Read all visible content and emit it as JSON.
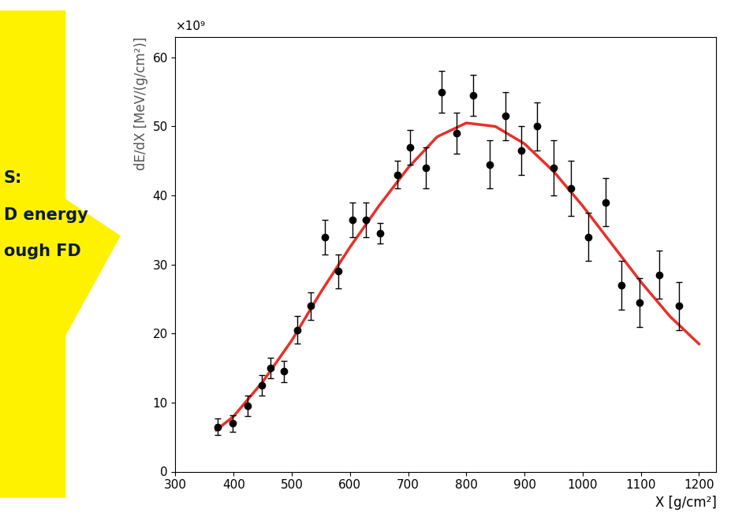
{
  "chart_data": {
    "type": "scatter",
    "x_label": "X [g/cm²]",
    "y_label": "dE/dX [MeV/(g/cm²)]",
    "annotations": [
      "×10⁹",
      "S:",
      "D energy",
      "ough FD"
    ],
    "xlim": [
      300,
      1230
    ],
    "xticks": [
      300,
      400,
      500,
      600,
      700,
      800,
      900,
      1000,
      1100,
      1200
    ],
    "ylim": [
      0,
      63
    ],
    "yticks": [
      0,
      10,
      20,
      30,
      40,
      50,
      60
    ],
    "series": [
      {
        "type": "scatter",
        "color": "#000000",
        "marker": "o",
        "x": [
          372,
          398,
          424,
          448,
          463,
          486,
          510,
          533,
          557,
          580,
          604,
          628,
          652,
          681,
          704,
          730,
          757,
          784,
          812,
          840,
          868,
          895,
          922,
          950,
          980,
          1010,
          1040,
          1067,
          1098,
          1132,
          1165
        ],
        "values": [
          6.5,
          7,
          9.5,
          12.5,
          15,
          14.5,
          20.5,
          24,
          34,
          29,
          36.5,
          36.5,
          34.5,
          43,
          47,
          44,
          55,
          49,
          54.5,
          44.5,
          51.5,
          46.5,
          50,
          44,
          41,
          34,
          39,
          27,
          24.5,
          28.5,
          24
        ],
        "errors": [
          1.2,
          1.2,
          1.5,
          1.5,
          1.5,
          1.5,
          2,
          2,
          2.5,
          2.5,
          2.5,
          2.5,
          1.5,
          2,
          2.5,
          3,
          3,
          3,
          3,
          3.5,
          3.5,
          3.5,
          3.5,
          4,
          4,
          3.5,
          3.5,
          3.5,
          3.5,
          3.5,
          3.5
        ]
      },
      {
        "type": "line",
        "color": "#e8302a",
        "line_style": "solid",
        "x": [
          370,
          400,
          450,
          500,
          550,
          600,
          650,
          700,
          750,
          800,
          850,
          900,
          950,
          1000,
          1050,
          1100,
          1150,
          1200
        ],
        "values": [
          6,
          8,
          13,
          19,
          26,
          32.5,
          38.5,
          44,
          48.5,
          50.5,
          50,
          47.5,
          43.5,
          38.5,
          33,
          27.5,
          22.5,
          18.5
        ]
      }
    ]
  }
}
